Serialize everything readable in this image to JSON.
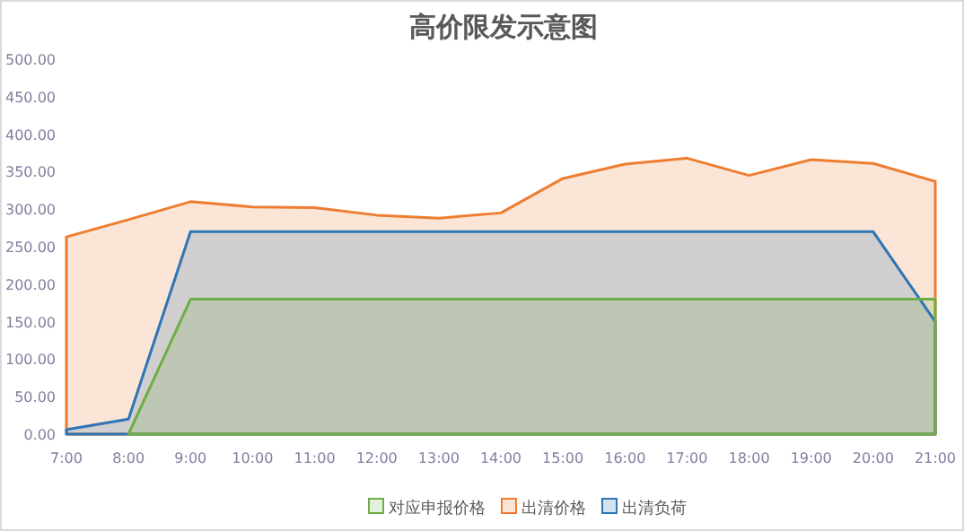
{
  "chart_data": {
    "type": "area",
    "title": "高价限发示意图",
    "categories": [
      "7:00",
      "8:00",
      "9:00",
      "10:00",
      "11:00",
      "12:00",
      "13:00",
      "14:00",
      "15:00",
      "16:00",
      "17:00",
      "18:00",
      "19:00",
      "20:00",
      "21:00"
    ],
    "series": [
      {
        "name": "对应申报价格",
        "color": "#70ad47",
        "values": [
          null,
          0,
          180,
          180,
          180,
          180,
          180,
          180,
          180,
          180,
          180,
          180,
          180,
          180,
          180
        ]
      },
      {
        "name": "出清价格",
        "color": "#ed7d31",
        "values": [
          263,
          286,
          310,
          303,
          302,
          292,
          288,
          295,
          341,
          360,
          368,
          345,
          366,
          361,
          337
        ]
      },
      {
        "name": "出清负荷",
        "color": "#2e75b6",
        "values": [
          6,
          20,
          270,
          270,
          270,
          270,
          270,
          270,
          270,
          270,
          270,
          270,
          270,
          270,
          150
        ]
      }
    ],
    "ylim": [
      0,
      500
    ],
    "yticks": [
      {
        "value": 0,
        "label": "0.00"
      },
      {
        "value": 50,
        "label": "50.00"
      },
      {
        "value": 100,
        "label": "100.00"
      },
      {
        "value": 150,
        "label": "150.00"
      },
      {
        "value": 200,
        "label": "200.00"
      },
      {
        "value": 250,
        "label": "250.00"
      },
      {
        "value": 300,
        "label": "300.00"
      },
      {
        "value": 350,
        "label": "350.00"
      },
      {
        "value": 400,
        "label": "400.00"
      },
      {
        "value": 450,
        "label": "450.00"
      },
      {
        "value": 500,
        "label": "500.00"
      }
    ],
    "grid": false,
    "legend": "bottom"
  }
}
